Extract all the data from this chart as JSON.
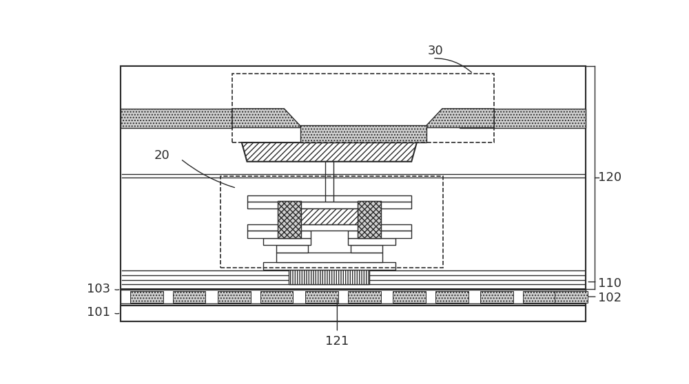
{
  "fig_width": 10.0,
  "fig_height": 5.58,
  "bg_color": "#ffffff",
  "lc": "#2a2a2a",
  "lc_light": "#555555",
  "gray_fill": "#d0d0d0",
  "white_fill": "#ffffff",
  "label_fs": 13,
  "lw_main": 1.5,
  "lw_thin": 1.0,
  "lw_hatch": 0.8
}
